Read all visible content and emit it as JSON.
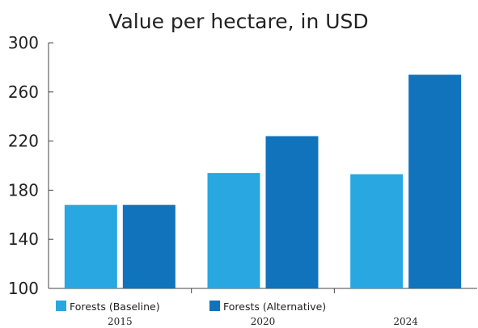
{
  "chart_data": {
    "type": "bar",
    "title": "Value per hectare, in USD",
    "xlabel": "",
    "ylabel": "",
    "categories": [
      "2015",
      "2020",
      "2024"
    ],
    "series": [
      {
        "name": "Forests (Baseline)",
        "values": [
          168,
          194,
          193
        ],
        "color": "#29A7E1"
      },
      {
        "name": "Forests (Alternative)",
        "values": [
          168,
          224,
          274
        ],
        "color": "#1073BC"
      }
    ],
    "ylim": [
      100,
      300
    ],
    "yticks": [
      "100",
      "140",
      "180",
      "220",
      "260",
      "300"
    ],
    "grid": false,
    "legend_position": "bottom-left"
  }
}
